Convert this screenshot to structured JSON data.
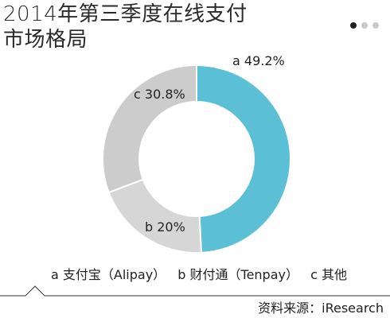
{
  "header": {
    "title_line1": "2014年第三季度在线支付",
    "title_line2": "市场格局"
  },
  "pager": {
    "count": 3,
    "active": 0
  },
  "chart_data": {
    "type": "pie",
    "donut": true,
    "title": "2014年第三季度在线支付市场格局",
    "slices": [
      {
        "key": "a",
        "name": "支付宝（Alipay）",
        "value": 49.2,
        "label": "a 49.2%",
        "color": "#5bbfd6"
      },
      {
        "key": "b",
        "name": "财付通（Tenpay）",
        "value": 20,
        "label": "b 20%",
        "color": "#d6d6d6"
      },
      {
        "key": "c",
        "name": "其他",
        "value": 30.8,
        "label": "c 30.8%",
        "color": "#cccccc"
      }
    ]
  },
  "legend": {
    "items": [
      "a 支付宝（Alipay）",
      "b 财付通（Tenpay）",
      "c 其他"
    ]
  },
  "source": "资料来源：iResearch",
  "colors": {
    "accent": "#5bbfd6",
    "gray": "#cfcfcf",
    "text": "#222222"
  }
}
